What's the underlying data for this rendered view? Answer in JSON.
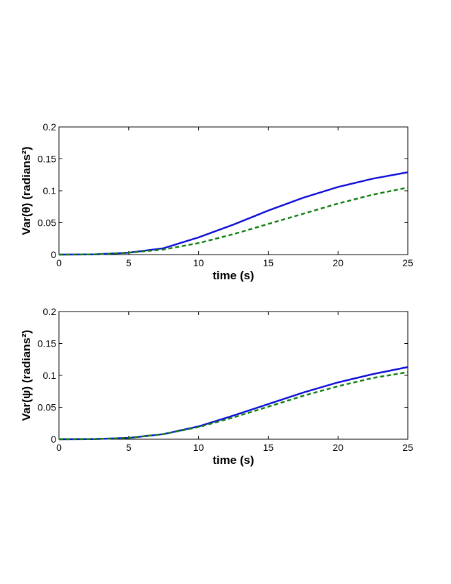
{
  "chart_data": [
    {
      "type": "line",
      "xlabel": "time (s)",
      "ylabel": "Var(θ) (radians²)",
      "x": [
        0,
        2.5,
        5,
        7.5,
        10,
        12.5,
        15,
        17.5,
        20,
        22.5,
        25
      ],
      "series": [
        {
          "color": "#1010d8",
          "style": "solid",
          "values": [
            0,
            0.0003,
            0.003,
            0.01,
            0.027,
            0.047,
            0.069,
            0.089,
            0.106,
            0.119,
            0.129
          ]
        },
        {
          "color": "#108010",
          "style": "dashed",
          "values": [
            0,
            0.0003,
            0.003,
            0.008,
            0.018,
            0.032,
            0.048,
            0.064,
            0.08,
            0.094,
            0.105
          ]
        }
      ],
      "xlim": [
        0,
        25
      ],
      "xticks": [
        0,
        5,
        10,
        15,
        20,
        25
      ],
      "ylim": [
        0,
        0.2
      ],
      "yticks": [
        0,
        0.05,
        0.1,
        0.15,
        0.2
      ]
    },
    {
      "type": "line",
      "xlabel": "time (s)",
      "ylabel": "Var(ψ) (radians²)",
      "x": [
        0,
        2.5,
        5,
        7.5,
        10,
        12.5,
        15,
        17.5,
        20,
        22.5,
        25
      ],
      "series": [
        {
          "color": "#1010d8",
          "style": "solid",
          "values": [
            0,
            0.0003,
            0.002,
            0.008,
            0.02,
            0.037,
            0.055,
            0.073,
            0.089,
            0.102,
            0.113
          ]
        },
        {
          "color": "#108010",
          "style": "dashed",
          "values": [
            0,
            0.0003,
            0.002,
            0.008,
            0.019,
            0.034,
            0.051,
            0.068,
            0.083,
            0.096,
            0.105
          ]
        }
      ],
      "xlim": [
        0,
        25
      ],
      "xticks": [
        0,
        5,
        10,
        15,
        20,
        25
      ],
      "ylim": [
        0,
        0.2
      ],
      "yticks": [
        0,
        0.05,
        0.1,
        0.15,
        0.2
      ]
    }
  ]
}
